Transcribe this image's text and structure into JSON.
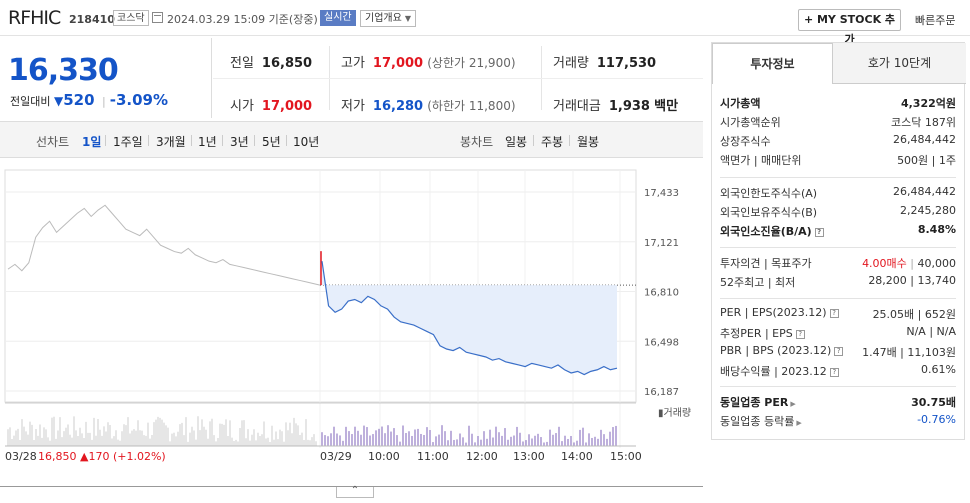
{
  "header": {
    "stock_name": "RFHIC",
    "stock_code": "218410",
    "market": "코스닥",
    "datetime": "2024.03.29 15:09 기준(장중)",
    "realtime": "실시간",
    "company_overview": "기업개요",
    "my_stock_btn": "+ MY STOCK 추가",
    "quick_order": "빠른주문"
  },
  "price": {
    "current": "16,330",
    "prev_label": "전일대비",
    "change": "520",
    "change_pct": "-3.09%",
    "direction": "down"
  },
  "summary": {
    "prev_close": {
      "label": "전일",
      "value": "16,850"
    },
    "high": {
      "label": "고가",
      "value": "17,000",
      "sub": "(상한가 21,900)"
    },
    "volume": {
      "label": "거래량",
      "value": "117,530"
    },
    "open": {
      "label": "시가",
      "value": "17,000"
    },
    "low": {
      "label": "저가",
      "value": "16,280",
      "sub": "(하한가 11,800)"
    },
    "amount": {
      "label": "거래대금",
      "value": "1,938",
      "unit": "백만"
    }
  },
  "toolbar": {
    "line_chart": "선차트",
    "periods": [
      "1일",
      "1주일",
      "3개월",
      "1년",
      "3년",
      "5년",
      "10년"
    ],
    "active_period": "1일",
    "candle_chart": "봉차트",
    "candle_periods": [
      "일봉",
      "주봉",
      "월봉"
    ]
  },
  "chart_data": {
    "type": "line",
    "y_ticks": [
      "17,433",
      "17,121",
      "16,810",
      "16,498",
      "16,187"
    ],
    "y_range": [
      16187,
      17433
    ],
    "reference_line": 16850,
    "x_labels": [
      "03/28",
      "03/29",
      "10:00",
      "11:00",
      "12:00",
      "13:00",
      "14:00",
      "15:00"
    ],
    "prev_day_summary": {
      "price": "16,850",
      "change": "170",
      "pct": "(+1.02%)",
      "direction": "up"
    },
    "volume_label": "거래량",
    "prev_day_series": [
      16950,
      16980,
      16940,
      16990,
      17150,
      17210,
      17250,
      17180,
      17220,
      17260,
      17300,
      17330,
      17280,
      17320,
      17350,
      17300,
      17250,
      17200,
      17180,
      17160,
      17200,
      17150,
      17100,
      17080,
      17060,
      17050,
      17080,
      17040,
      17020,
      17000,
      16990,
      17010,
      16980,
      16970,
      16960,
      16950,
      16940,
      16930,
      16920,
      16910,
      16900,
      16890,
      16880,
      16870,
      16860,
      16850
    ],
    "today_series": [
      17000,
      16720,
      16680,
      16700,
      16750,
      16760,
      16740,
      16780,
      16760,
      16720,
      16700,
      16650,
      16620,
      16610,
      16600,
      16580,
      16560,
      16540,
      16470,
      16450,
      16440,
      16460,
      16430,
      16420,
      16410,
      16400,
      16380,
      16390,
      16370,
      16360,
      16350,
      16340,
      16360,
      16350,
      16340,
      16330,
      16350,
      16320,
      16300,
      16310,
      16290,
      16310,
      16320,
      16340,
      16320,
      16330
    ]
  },
  "right_panel": {
    "tabs": [
      "투자정보",
      "호가 10단계"
    ],
    "active_tab": "투자정보",
    "sections": [
      [
        {
          "k": "시가총액",
          "v": "4,322억원",
          "bold": true
        },
        {
          "k": "시가총액순위",
          "v": "코스닥 187위"
        },
        {
          "k": "상장주식수",
          "v": "26,484,442"
        },
        {
          "k": "액면가 | 매매단위",
          "v": "500원 | 1주"
        }
      ],
      [
        {
          "k": "외국인한도주식수(A)",
          "v": "26,484,442"
        },
        {
          "k": "외국인보유주식수(B)",
          "v": "2,245,280"
        },
        {
          "k": "외국인소진율(B/A)",
          "v": "8.48%",
          "bold": true,
          "q": true
        }
      ],
      [
        {
          "k": "투자의견 | 목표주가",
          "v": "40,000",
          "v_red": "4.00매수"
        },
        {
          "k": "52주최고 | 최저",
          "v": "28,200 | 13,740"
        }
      ],
      [
        {
          "k": "PER | EPS(2023.12)",
          "v": "25.05배 | 652원",
          "q": true
        },
        {
          "k": "추정PER | EPS",
          "v": "N/A | N/A",
          "q": true
        },
        {
          "k": "PBR | BPS (2023.12)",
          "v": "1.47배 | 11,103원",
          "q": true
        },
        {
          "k": "배당수익률 | 2023.12",
          "v": "0.61%",
          "q": true
        }
      ],
      [
        {
          "k": "동일업종 PER",
          "v": "30.75배",
          "bold": true,
          "arrow": true
        },
        {
          "k": "동일업종 등락률",
          "v": "-0.76%",
          "blue": true,
          "arrow": true
        }
      ]
    ]
  },
  "colors": {
    "up": "#e2161f",
    "down": "#1454c8",
    "fill": "#e6eefb"
  }
}
